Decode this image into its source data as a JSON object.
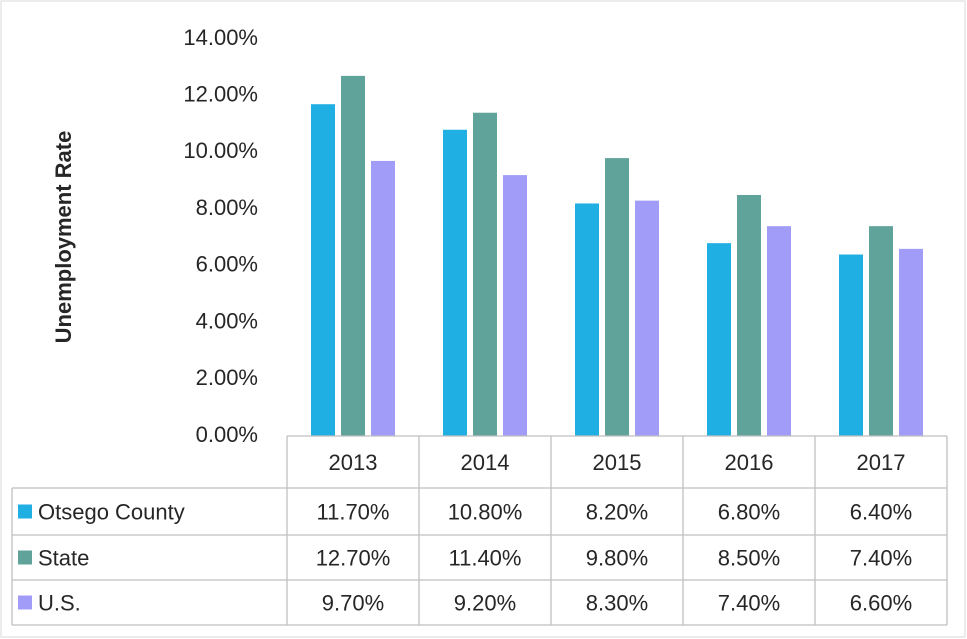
{
  "chart_data": {
    "type": "bar",
    "y_axis_label": "Unemployment Rate",
    "categories": [
      "2013",
      "2014",
      "2015",
      "2016",
      "2017"
    ],
    "series": [
      {
        "name": "Otsego County",
        "color": "#1fafe3",
        "values": [
          11.7,
          10.8,
          8.2,
          6.8,
          6.4
        ],
        "value_labels": [
          "11.70%",
          "10.80%",
          "8.20%",
          "6.80%",
          "6.40%"
        ]
      },
      {
        "name": "State",
        "color": "#5fa39b",
        "values": [
          12.7,
          11.4,
          9.8,
          8.5,
          7.4
        ],
        "value_labels": [
          "12.70%",
          "11.40%",
          "9.80%",
          "8.50%",
          "7.40%"
        ]
      },
      {
        "name": "U.S.",
        "color": "#a09cf8",
        "values": [
          9.7,
          9.2,
          8.3,
          7.4,
          6.6
        ],
        "value_labels": [
          "9.70%",
          "9.20%",
          "8.30%",
          "7.40%",
          "6.60%"
        ]
      }
    ],
    "ylim": [
      0,
      14
    ],
    "yticks": [
      {
        "value": 0,
        "label": "0.00%"
      },
      {
        "value": 2,
        "label": "2.00%"
      },
      {
        "value": 4,
        "label": "4.00%"
      },
      {
        "value": 6,
        "label": "6.00%"
      },
      {
        "value": 8,
        "label": "8.00%"
      },
      {
        "value": 10,
        "label": "10.00%"
      },
      {
        "value": 12,
        "label": "12.00%"
      },
      {
        "value": 14,
        "label": "14.00%"
      }
    ],
    "grid": false,
    "data_table": true
  }
}
